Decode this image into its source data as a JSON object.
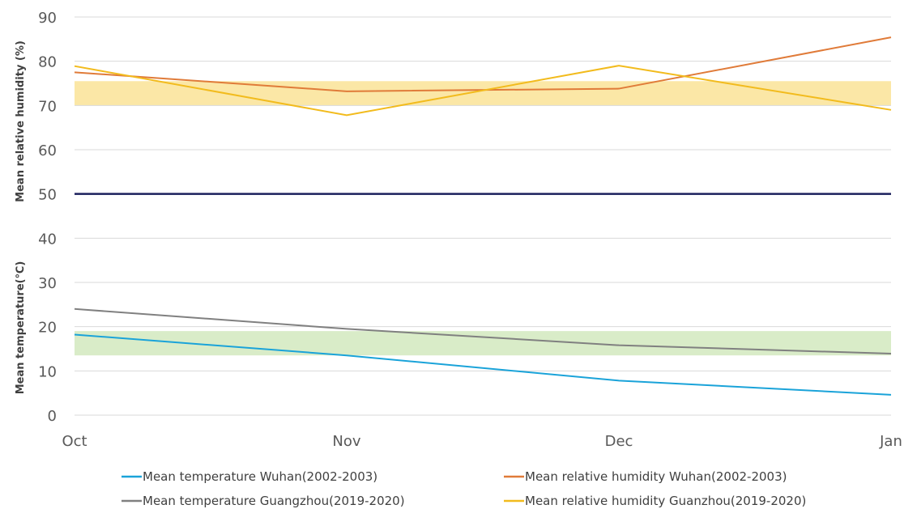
{
  "chart_data": {
    "type": "line",
    "categories": [
      "Oct",
      "Nov",
      "Dec",
      "Jan"
    ],
    "y_ticks": [
      "0",
      "10",
      "20",
      "30",
      "40",
      "50",
      "60",
      "70",
      "80",
      "90"
    ],
    "ylim": [
      0,
      90
    ],
    "grid": true,
    "legend_position": "bottom",
    "ylabel_upper": "Mean relative humidity (%)",
    "ylabel_lower": "Mean temperature(℃)",
    "reference_line": {
      "value": 50,
      "color": "#1a1f5c"
    },
    "bands": [
      {
        "from": 70,
        "to": 75.5,
        "color": "#fbe7a6"
      },
      {
        "from": 13.5,
        "to": 19,
        "color": "#d9ecc8"
      }
    ],
    "series": [
      {
        "name": "Mean temperature Wuhan(2002-2003)",
        "color": "#1aa3d9",
        "values": [
          18.2,
          13.5,
          7.8,
          4.6
        ]
      },
      {
        "name": "Mean relative humidity Wuhan(2002-2003)",
        "color": "#e07b39",
        "values": [
          77.5,
          73.2,
          73.8,
          85.4
        ]
      },
      {
        "name": "Mean temperature Guangzhou(2019-2020)",
        "color": "#808080",
        "values": [
          24.0,
          19.5,
          15.8,
          13.9
        ]
      },
      {
        "name": "Mean relative humidity Guanzhou(2019-2020)",
        "color": "#f2bb1d",
        "values": [
          78.9,
          67.8,
          79.0,
          69.0
        ]
      }
    ]
  }
}
